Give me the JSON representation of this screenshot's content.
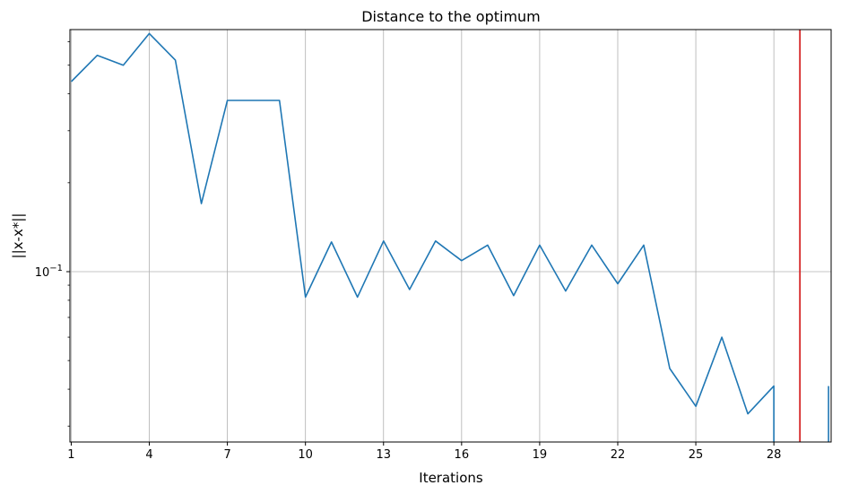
{
  "chart_data": {
    "type": "line",
    "title": "Distance to the optimum",
    "xlabel": "Iterations",
    "ylabel": "||x-x*||",
    "yscale": "log",
    "grid": true,
    "xlim": [
      0.95,
      30.2
    ],
    "ylim": [
      0.0265,
      0.66
    ],
    "x_ticks": [
      1,
      4,
      7,
      10,
      13,
      16,
      19,
      22,
      25,
      28
    ],
    "x_tick_labels": [
      "1",
      "4",
      "7",
      "10",
      "13",
      "16",
      "19",
      "22",
      "25",
      "28"
    ],
    "y_ticks": [
      0.1
    ],
    "y_tick_labels": [
      "10",
      "−1"
    ],
    "series": [
      {
        "color": "#1f77b4",
        "x": [
          1,
          2,
          3,
          4,
          5,
          6,
          7,
          8,
          9,
          10,
          11,
          12,
          13,
          14,
          15,
          16,
          17,
          18,
          19,
          20,
          21,
          22,
          23,
          24,
          25,
          26,
          27,
          28,
          28
        ],
        "y": [
          0.44,
          0.54,
          0.5,
          0.64,
          0.52,
          0.17,
          0.38,
          0.38,
          0.38,
          0.082,
          0.126,
          0.082,
          0.127,
          0.087,
          0.127,
          0.109,
          0.123,
          0.083,
          0.123,
          0.086,
          0.123,
          0.091,
          0.123,
          0.047,
          0.035,
          0.06,
          0.033,
          0.041,
          0.0265
        ]
      },
      {
        "color": "#1f77b4",
        "x": [
          30.1,
          30.1
        ],
        "y": [
          0.0265,
          0.041
        ]
      }
    ],
    "vlines": [
      {
        "x": 29,
        "color": "#d62728"
      }
    ]
  }
}
